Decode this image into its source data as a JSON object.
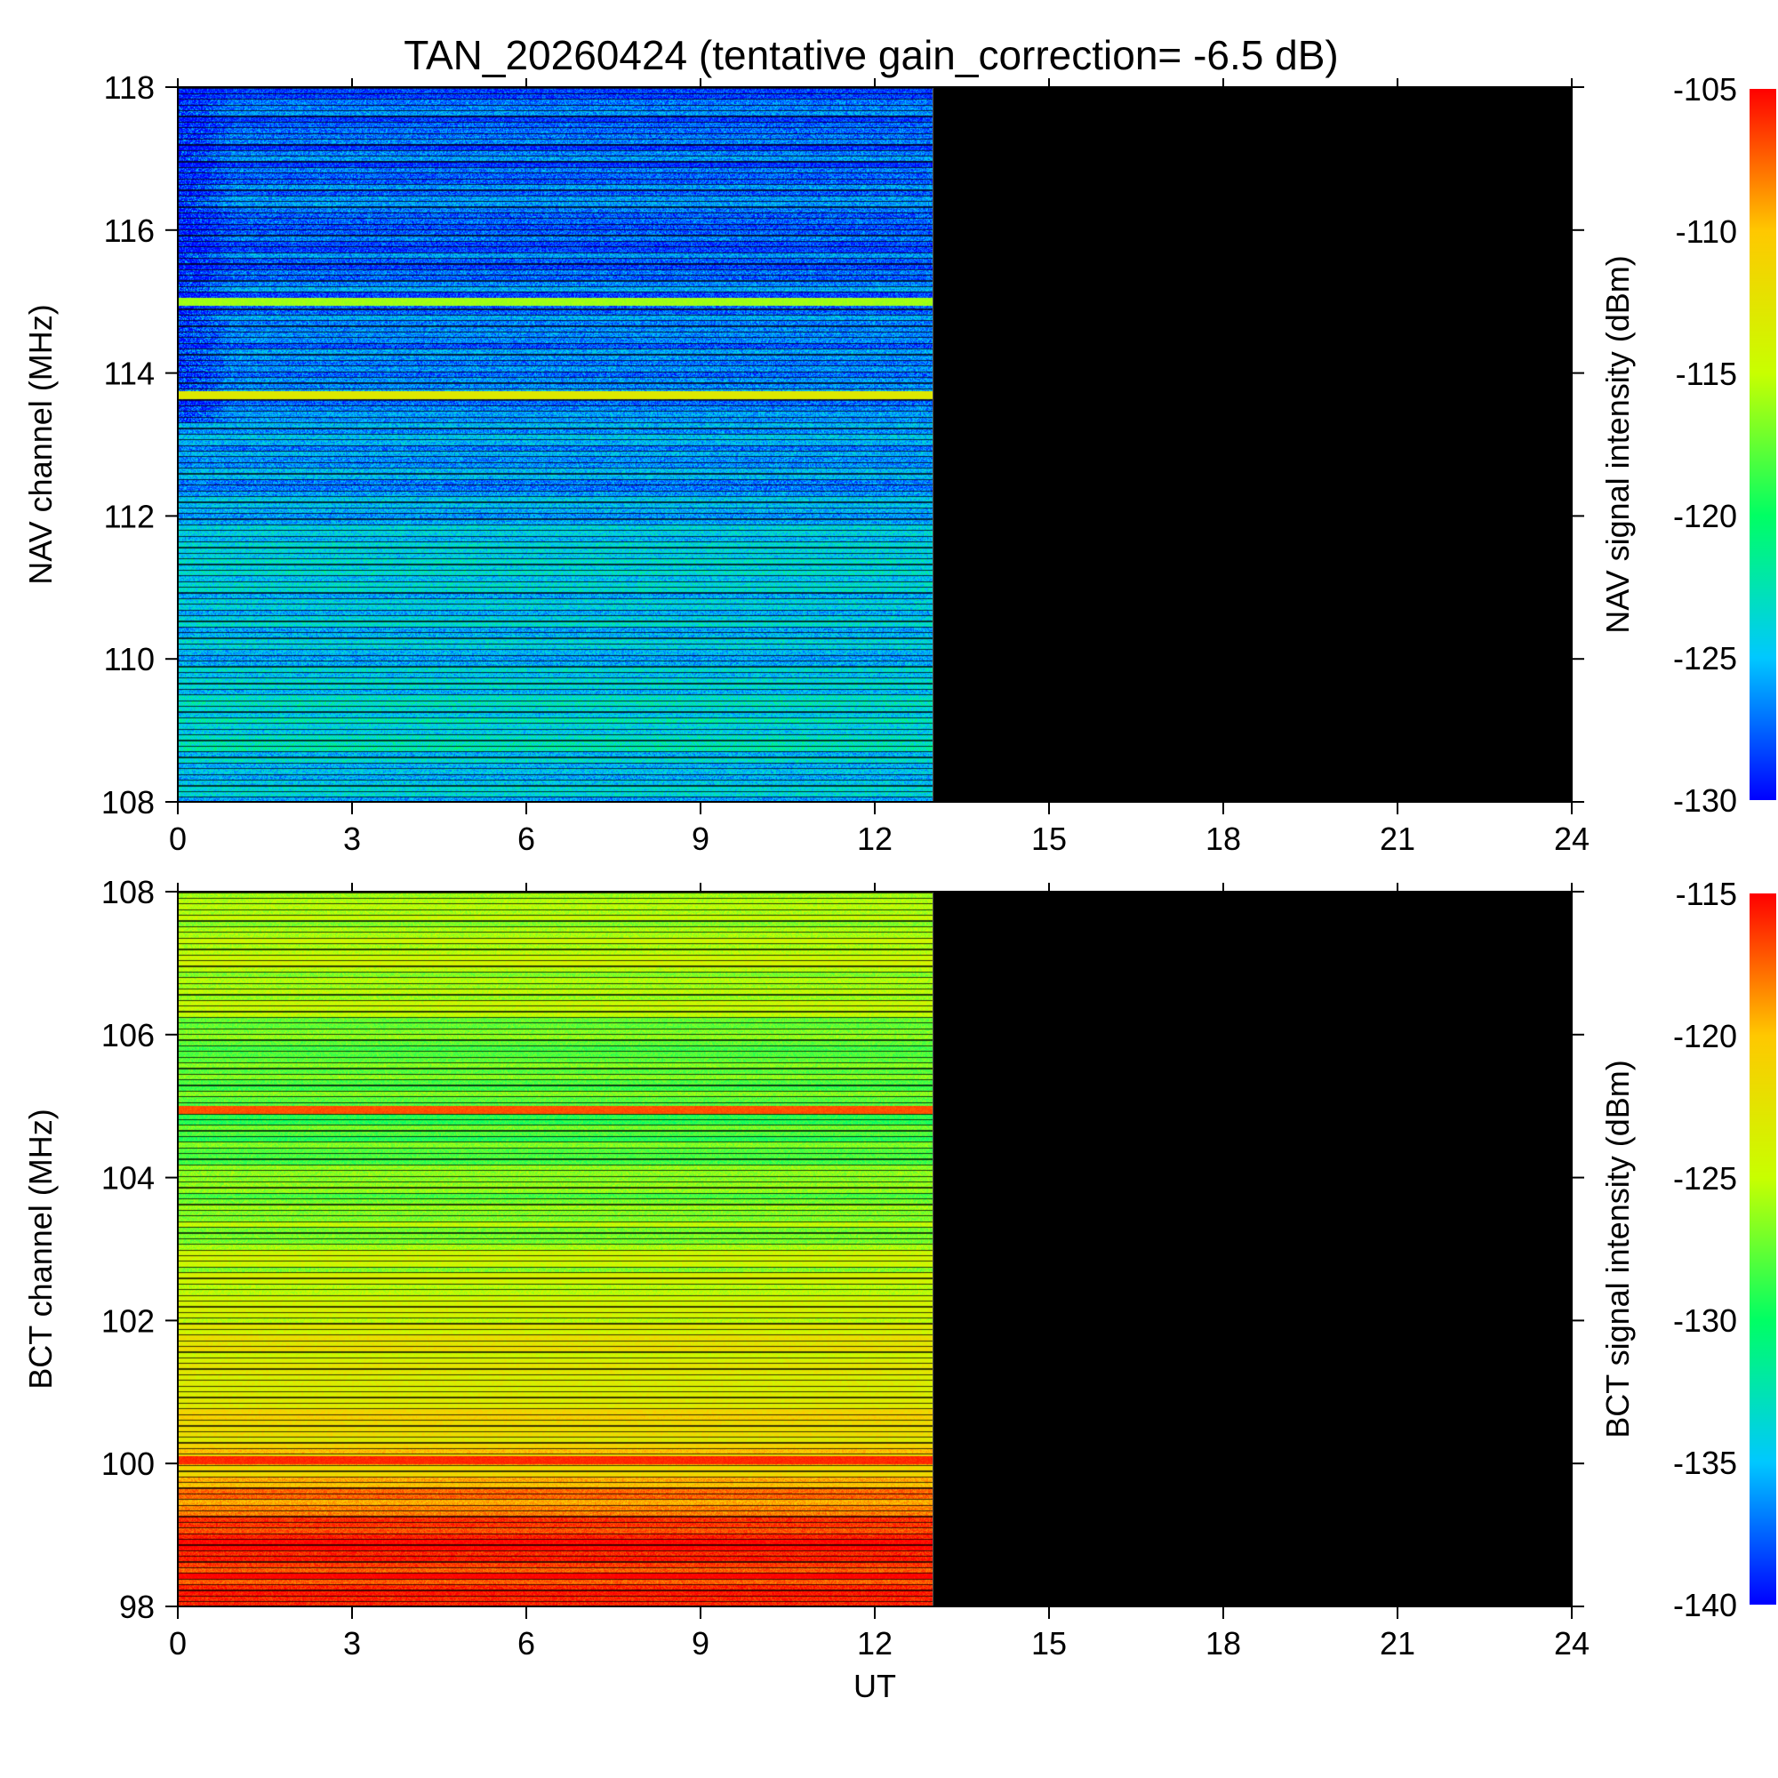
{
  "title": "TAN_20260424 (tentative gain_correction= -6.5 dB)",
  "colors": {
    "no_data": "#000000",
    "colormap": [
      "#0000ff",
      "#00c8ff",
      "#00ff64",
      "#c8ff00",
      "#ffc800",
      "#ff0000"
    ]
  },
  "chart_data": [
    {
      "type": "heatmap",
      "panel": "NAV",
      "ylabel": "NAV channel (MHz)",
      "xlabel": "",
      "xlim": [
        0,
        24
      ],
      "xticks": [
        "0",
        "3",
        "6",
        "9",
        "12",
        "15",
        "18",
        "21",
        "24"
      ],
      "ylim": [
        108,
        118
      ],
      "yticks": [
        "108",
        "110",
        "112",
        "114",
        "116",
        "118"
      ],
      "data_until_ut": 13,
      "colorbar": {
        "label": "NAV signal intensity (dBm)",
        "range": [
          -130,
          -105
        ],
        "ticks": [
          "-105",
          "-110",
          "-115",
          "-120",
          "-125",
          "-130"
        ]
      },
      "profile_freq": [
        108,
        108.5,
        109,
        109.5,
        110,
        110.5,
        111,
        111.5,
        112,
        112.5,
        113,
        113.5,
        114,
        114.5,
        115,
        115.5,
        116,
        116.5,
        117,
        117.5,
        118
      ],
      "profile_dbm": [
        -125.5,
        -124,
        -123.5,
        -124,
        -125,
        -124.5,
        -124.5,
        -124.5,
        -125.5,
        -126,
        -126,
        -126.5,
        -127,
        -127,
        -127,
        -127,
        -127.5,
        -127.5,
        -127.5,
        -127.5,
        -127
      ],
      "strong_lines": [
        {
          "freq_mhz": 115.0,
          "dbm": -116
        },
        {
          "freq_mhz": 113.7,
          "dbm": -113
        }
      ]
    },
    {
      "type": "heatmap",
      "panel": "BCT",
      "ylabel": "BCT channel (MHz)",
      "xlabel": "UT",
      "xlim": [
        0,
        24
      ],
      "xticks": [
        "0",
        "3",
        "6",
        "9",
        "12",
        "15",
        "18",
        "21",
        "24"
      ],
      "ylim": [
        98,
        108
      ],
      "yticks": [
        "98",
        "100",
        "102",
        "104",
        "106",
        "108"
      ],
      "data_until_ut": 13,
      "colorbar": {
        "label": "BCT signal intensity (dBm)",
        "range": [
          -140,
          -115
        ],
        "ticks": [
          "-115",
          "-120",
          "-125",
          "-130",
          "-135",
          "-140"
        ]
      },
      "profile_freq": [
        98,
        98.5,
        99,
        99.5,
        100,
        100.5,
        101,
        101.5,
        102,
        102.5,
        103,
        103.5,
        104,
        104.5,
        105,
        105.5,
        106,
        106.5,
        107,
        107.5,
        108
      ],
      "profile_dbm": [
        -116,
        -116,
        -116.5,
        -118.5,
        -120.5,
        -122,
        -122.5,
        -123,
        -124,
        -125,
        -125.5,
        -126.5,
        -127.5,
        -128,
        -128,
        -128,
        -127,
        -126,
        -125.5,
        -125.5,
        -125.5
      ],
      "strong_lines": [
        {
          "freq_mhz": 100.05,
          "dbm": -116
        },
        {
          "freq_mhz": 104.95,
          "dbm": -117
        }
      ]
    }
  ]
}
